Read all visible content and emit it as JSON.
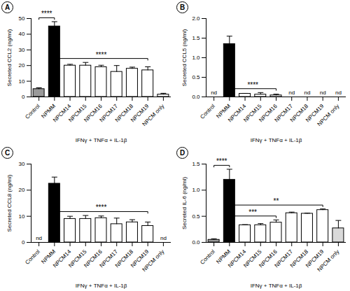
{
  "chart_data": [
    {
      "type": "bar",
      "title": "A",
      "ylabel": "Secreted CCL2 (ng/ml)",
      "xlabel": "IFNγ + TNFα + IL-1β",
      "categories": [
        "Control",
        "NPMM",
        "NPCM14",
        "NPCM15",
        "NPCM16",
        "NPCM17",
        "NPCM18",
        "NPCM19",
        "NPCM only"
      ],
      "values": [
        5,
        45,
        20,
        20,
        19,
        16,
        18,
        17,
        1.5
      ],
      "errors": [
        0.8,
        3,
        0.8,
        2,
        1.2,
        4,
        1,
        2.2,
        0.8
      ],
      "colors": [
        "#999999",
        "#000000",
        "#ffffff",
        "#ffffff",
        "#ffffff",
        "#ffffff",
        "#ffffff",
        "#ffffff",
        "#ffffff"
      ],
      "ylim": [
        0,
        50
      ],
      "yticks": [
        0,
        10,
        20,
        30,
        40,
        50
      ],
      "grid": false,
      "annotations": [
        {
          "text": "****",
          "from": "Control",
          "to": "NPMM"
        },
        {
          "text": "****",
          "from": "NPMM",
          "to": "NPCM19"
        }
      ]
    },
    {
      "type": "bar",
      "title": "B",
      "ylabel": "Secreted CCL5 (ng/ml)",
      "xlabel": "IFNγ + TNFα + IL-1β",
      "categories": [
        "Control",
        "NPMM",
        "NPCM14",
        "NPCM15",
        "NPCM16",
        "NPCM17",
        "NPCM18",
        "NPCM19",
        "NPCM only"
      ],
      "values": [
        null,
        1.35,
        0.08,
        0.06,
        0.04,
        null,
        null,
        null,
        null
      ],
      "errors": [
        null,
        0.2,
        0.01,
        0.05,
        0.03,
        null,
        null,
        null,
        null
      ],
      "value_labels": [
        "nd",
        null,
        null,
        null,
        null,
        "nd",
        "nd",
        "nd",
        "nd"
      ],
      "colors": [
        "#999999",
        "#000000",
        "#ffffff",
        "#ffffff",
        "#ffffff",
        "#ffffff",
        "#ffffff",
        "#ffffff",
        "#ffffff"
      ],
      "ylim": [
        0,
        2
      ],
      "yticks": [
        {
          "value": 0,
          "label": "0.0"
        },
        0.5,
        {
          "value": 1,
          "label": "1.0"
        },
        1.5,
        {
          "value": 2,
          "label": "2.0"
        }
      ],
      "grid": false,
      "annotations": [
        {
          "text": "****",
          "from": "NPMM",
          "to": "NPCM16"
        }
      ]
    },
    {
      "type": "bar",
      "title": "C",
      "ylabel": "Secreted CCL8 (ng/ml)",
      "xlabel": "IFNγ + TNFα + IL-1β",
      "categories": [
        "Control",
        "NPMM",
        "NPCM14",
        "NPCM15",
        "NPCM16",
        "NPCM17",
        "NPCM18",
        "NPCM19",
        "NPCM only"
      ],
      "values": [
        null,
        22.5,
        9,
        9,
        9.3,
        7,
        7.7,
        6.3,
        null
      ],
      "errors": [
        null,
        2.5,
        1,
        1.3,
        0.8,
        2.3,
        1,
        1.5,
        null
      ],
      "value_labels": [
        "nd",
        null,
        null,
        null,
        null,
        null,
        null,
        null,
        "nd"
      ],
      "colors": [
        "#999999",
        "#000000",
        "#ffffff",
        "#ffffff",
        "#ffffff",
        "#ffffff",
        "#ffffff",
        "#ffffff",
        "#ffffff"
      ],
      "ylim": [
        0,
        30
      ],
      "yticks": [
        0,
        10,
        20,
        30
      ],
      "grid": false,
      "annotations": [
        {
          "text": "****",
          "from": "NPMM",
          "to": "NPCM19"
        }
      ]
    },
    {
      "type": "bar",
      "title": "D",
      "ylabel": "Secreted IL-6 (ng/ml)",
      "xlabel": "IFNγ + TNFα + IL-1β",
      "categories": [
        "Control",
        "NPMM",
        "NPCM14",
        "NPCM15",
        "NPCM16",
        "NPCM17",
        "NPCM18",
        "NPCM19",
        "NPCM only"
      ],
      "values": [
        0.05,
        1.2,
        0.33,
        0.33,
        0.38,
        0.56,
        0.55,
        0.62,
        0.27
      ],
      "errors": [
        0.02,
        0.2,
        0.01,
        0.03,
        0.05,
        0.02,
        0.01,
        0.02,
        0.15
      ],
      "colors": [
        "#999999",
        "#000000",
        "#ffffff",
        "#ffffff",
        "#ffffff",
        "#ffffff",
        "#ffffff",
        "#ffffff",
        "#d9d9d9"
      ],
      "ylim": [
        0,
        1.5
      ],
      "yticks": [
        {
          "value": 0,
          "label": "0.0"
        },
        0.5,
        {
          "value": 1,
          "label": "1.0"
        },
        1.5
      ],
      "grid": false,
      "annotations": [
        {
          "text": "****",
          "from": "Control",
          "to": "NPMM"
        },
        {
          "text": "***",
          "from": "NPMM",
          "to": "NPCM16"
        },
        {
          "text": "**",
          "from": "NPMM",
          "to": "NPCM19"
        }
      ]
    }
  ]
}
